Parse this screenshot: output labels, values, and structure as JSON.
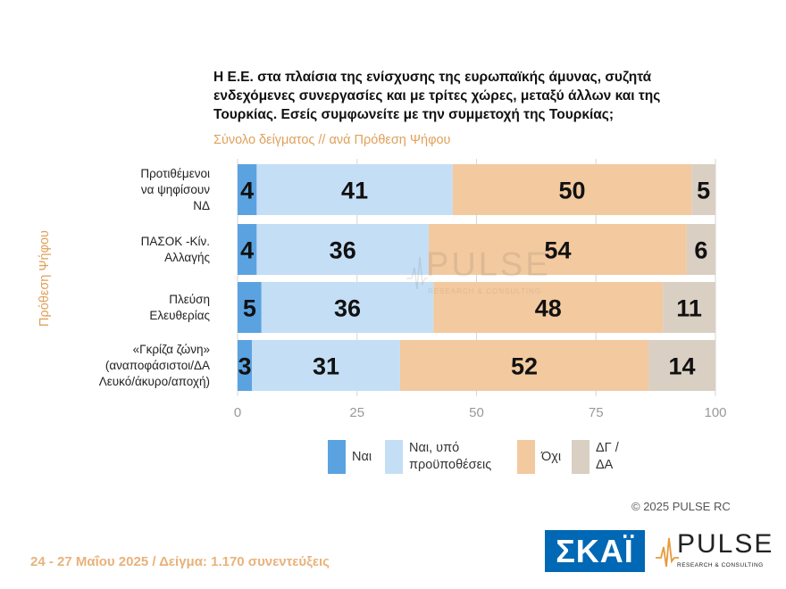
{
  "title": "Η Ε.Ε. στα πλαίσια της ενίσχυσης της ευρωπαϊκής άμυνας, συζητά ενδεχόμενες συνεργασίες και με τρίτες χώρες, μεταξύ άλλων και της Τουρκίας. Εσείς συμφωνείτε με την συμμετοχή της Τουρκίας;",
  "subtitle": "Σύνολο δείγματος // ανά Πρόθεση Ψήφου",
  "copyright": "© 2025 PULSE RC",
  "footer": "24 - 27 Μαΐου 2025  /  Δείγμα:  1.170 συνεντεύξεις",
  "logos": {
    "skai": "ΣΚΑΪ",
    "pulse": "PULSE",
    "pulse_sub": "RESEARCH & CONSULTING"
  },
  "chart_data": {
    "type": "bar",
    "orientation": "horizontal",
    "stacked": true,
    "ylabel": "Πρόθεση Ψήφου",
    "xlim": [
      0,
      100
    ],
    "xticks": [
      0,
      25,
      50,
      75,
      100
    ],
    "categories": [
      [
        "Προτιθέμενοι",
        "να ψηφίσουν",
        "ΝΔ"
      ],
      [
        "ΠΑΣΟΚ -Κίν.",
        "Αλλαγής"
      ],
      [
        "Πλεύση",
        "Ελευθερίας"
      ],
      [
        "«Γκρίζα ζώνη»",
        "(αναποφάσιστοι/ΔΑ",
        "Λευκό/άκυρο/αποχή)"
      ]
    ],
    "series": [
      {
        "name": [
          "Ναι"
        ],
        "color": "#5ba3e0",
        "values": [
          4,
          4,
          5,
          3
        ]
      },
      {
        "name": [
          "Ναι, υπό",
          "προϋποθέσεις"
        ],
        "color": "#c4def5",
        "values": [
          41,
          36,
          36,
          31
        ]
      },
      {
        "name": [
          "Όχι"
        ],
        "color": "#f3c99f",
        "values": [
          50,
          54,
          48,
          52
        ]
      },
      {
        "name": [
          "ΔΓ /",
          "ΔΑ"
        ],
        "color": "#d9cfc3",
        "values": [
          5,
          6,
          11,
          14
        ]
      }
    ]
  }
}
